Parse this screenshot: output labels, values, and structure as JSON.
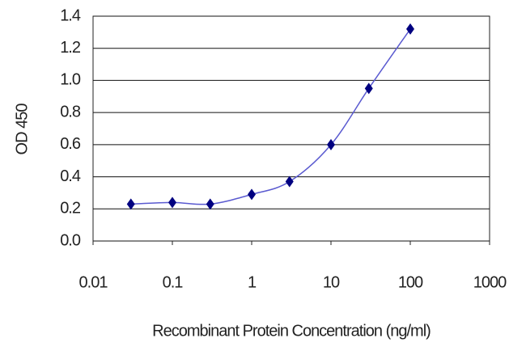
{
  "chart_data": {
    "type": "line",
    "x_label": "Recombinant Protein Concentration (ng/ml)",
    "y_label": "OD 450",
    "x": [
      0.03,
      0.1,
      0.3,
      1,
      3,
      10,
      30,
      100
    ],
    "series": [
      {
        "values": [
          0.23,
          0.24,
          0.23,
          0.29,
          0.37,
          0.6,
          0.95,
          1.32
        ],
        "color": "#000080",
        "line_color": "#5a5ad0"
      }
    ],
    "xlim": [
      0.01,
      1000
    ],
    "xticks": [
      0.01,
      0.1,
      1,
      10,
      100,
      1000
    ],
    "x_log": true,
    "ylim": [
      0,
      1.4
    ],
    "yticks": [
      {
        "value": 0,
        "label": "0.0"
      },
      0.2,
      0.4,
      0.6,
      0.8,
      {
        "value": 1,
        "label": "1.0"
      },
      1.2,
      1.4
    ],
    "grid": true
  }
}
